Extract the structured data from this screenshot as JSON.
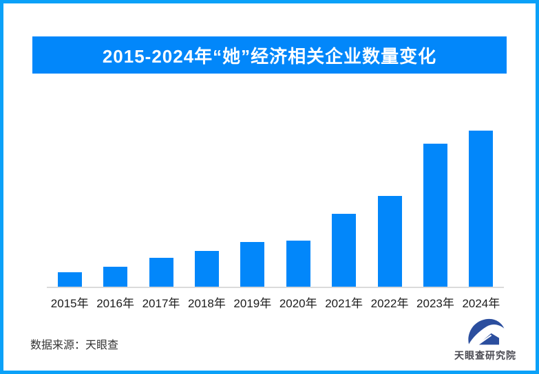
{
  "banner": {
    "title": "2015-2024年“她”经济相关企业数量变化"
  },
  "chart_data": {
    "type": "bar",
    "title": "2015-2024年“她”经济相关企业数量变化",
    "categories": [
      "2015年",
      "2016年",
      "2017年",
      "2018年",
      "2019年",
      "2020年",
      "2021年",
      "2022年",
      "2023年",
      "2024年"
    ],
    "values": [
      9.3,
      12.9,
      18.5,
      23.0,
      28.8,
      29.5,
      46.8,
      58.3,
      91.6,
      100
    ],
    "value_note": "relative bar heights estimated from pixels, 2024 = 100; no numeric y-axis shown",
    "xlabel": "",
    "ylabel": "",
    "ylim": [
      0,
      106
    ],
    "grid": false,
    "legend": false,
    "bar_color": "#0287FA",
    "axis_line_color": "#DADADA"
  },
  "footer": {
    "source_label": "数据来源：天眼查"
  },
  "logo": {
    "text": "天眼查研究院",
    "mark_icon": "tianyancha-eye-house-logo",
    "mark_color": "#2B4E9E"
  },
  "colors": {
    "accent_blue": "#0287FA",
    "border_blue": "#0BA1F8",
    "banner_text": "#FFFFFF",
    "tick_label": "#1C1C1C",
    "source_text": "#333333",
    "logo_text": "#4A4A52"
  }
}
